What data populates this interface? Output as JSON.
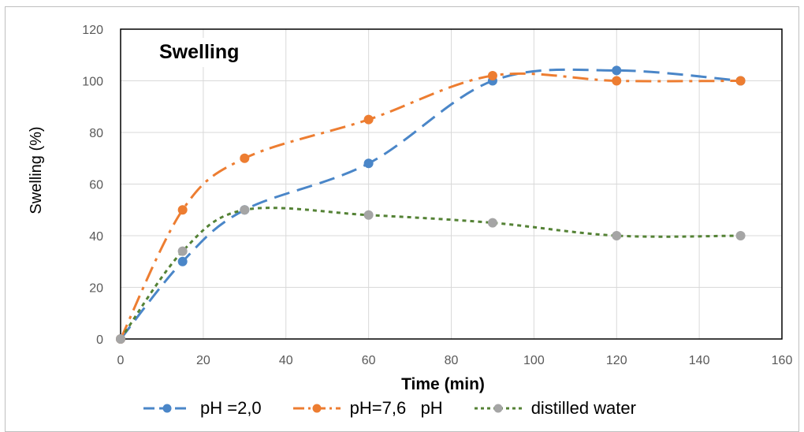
{
  "chart_data": {
    "type": "line",
    "title": "Swelling",
    "xlabel": "Time (min)",
    "ylabel": "Swelling  (%)",
    "xlim": [
      0,
      160
    ],
    "ylim": [
      0,
      120
    ],
    "xticks": [
      0,
      20,
      40,
      60,
      80,
      100,
      120,
      140,
      160
    ],
    "yticks": [
      0,
      20,
      40,
      60,
      80,
      100,
      120
    ],
    "grid": true,
    "legend_position": "bottom",
    "series": [
      {
        "name": "pH =2,0",
        "color": "#4a86c8",
        "dash": "dash",
        "x": [
          0,
          15,
          30,
          60,
          90,
          120,
          150
        ],
        "y": [
          0,
          30,
          50,
          68,
          100,
          104,
          100
        ]
      },
      {
        "name": "pH=7,6   pH",
        "color": "#ed7d31",
        "dash": "dashdot",
        "x": [
          0,
          15,
          30,
          60,
          90,
          120,
          150
        ],
        "y": [
          0,
          50,
          70,
          85,
          102,
          100,
          100
        ]
      },
      {
        "name": "distilled water",
        "color": "#548235",
        "marker_color": "#a5a5a5",
        "dash": "dot",
        "x": [
          0,
          15,
          30,
          60,
          90,
          120,
          150
        ],
        "y": [
          0,
          34,
          50,
          48,
          45,
          40,
          40
        ]
      }
    ]
  }
}
